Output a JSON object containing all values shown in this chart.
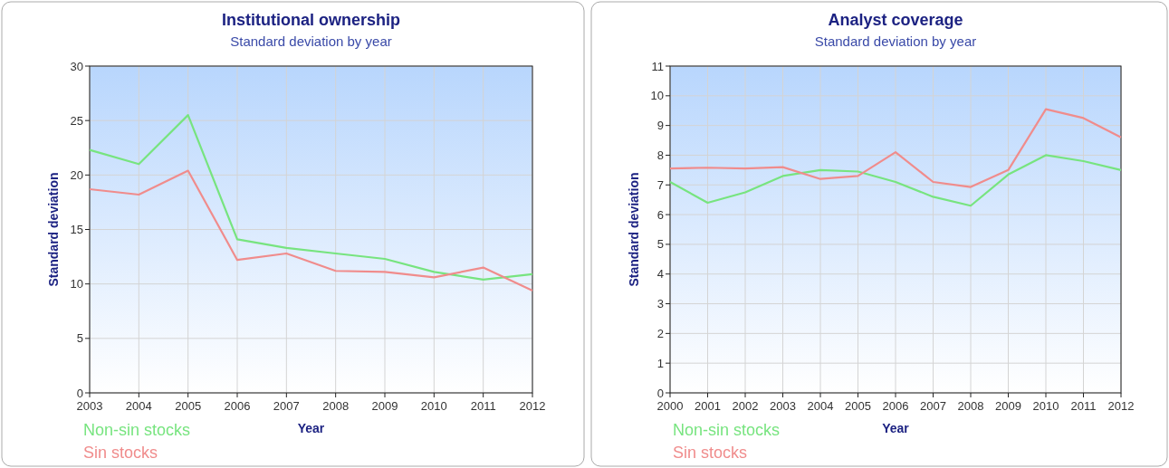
{
  "chart_data": [
    {
      "type": "line",
      "title": "Institutional ownership",
      "subtitle": "Standard deviation by year",
      "xlabel": "Year",
      "ylabel": "Standard deviation",
      "x": [
        2003,
        2004,
        2005,
        2006,
        2007,
        2008,
        2009,
        2010,
        2011,
        2012
      ],
      "xlim": [
        2003,
        2012
      ],
      "xticks": [
        2003,
        2004,
        2005,
        2006,
        2007,
        2008,
        2009,
        2010,
        2011,
        2012
      ],
      "ylim": [
        0,
        30
      ],
      "yticks": [
        0,
        5,
        10,
        15,
        20,
        25,
        30
      ],
      "grid": true,
      "legend": "bottom left",
      "series": [
        {
          "name": "Non-sin stocks",
          "color": "#77e47f",
          "values": [
            22.3,
            21.0,
            25.5,
            14.1,
            13.3,
            12.8,
            12.3,
            11.1,
            10.4,
            10.9
          ]
        },
        {
          "name": "Sin stocks",
          "color": "#f08c8c",
          "values": [
            18.7,
            18.2,
            20.4,
            12.2,
            12.8,
            11.2,
            11.1,
            10.6,
            11.5,
            9.4
          ]
        }
      ]
    },
    {
      "type": "line",
      "title": "Analyst coverage",
      "subtitle": "Standard deviation by year",
      "xlabel": "Year",
      "ylabel": "Standard deviation",
      "x": [
        2000,
        2001,
        2002,
        2003,
        2004,
        2005,
        2006,
        2007,
        2008,
        2009,
        2010,
        2011,
        2012
      ],
      "xlim": [
        2000,
        2012
      ],
      "xticks": [
        2000,
        2001,
        2002,
        2003,
        2004,
        2005,
        2006,
        2007,
        2008,
        2009,
        2010,
        2011,
        2012
      ],
      "ylim": [
        0,
        11
      ],
      "yticks": [
        0,
        1,
        2,
        3,
        4,
        5,
        6,
        7,
        8,
        9,
        10,
        11
      ],
      "grid": true,
      "legend": "bottom left",
      "series": [
        {
          "name": "Non-sin stocks",
          "color": "#77e47f",
          "values": [
            7.1,
            6.4,
            6.75,
            7.3,
            7.5,
            7.45,
            7.1,
            6.6,
            6.3,
            7.35,
            8.0,
            7.8,
            7.5
          ]
        },
        {
          "name": "Sin stocks",
          "color": "#f08c8c",
          "values": [
            7.55,
            7.58,
            7.55,
            7.6,
            7.2,
            7.3,
            8.1,
            7.1,
            6.93,
            7.5,
            9.55,
            9.25,
            8.6
          ]
        }
      ]
    }
  ]
}
